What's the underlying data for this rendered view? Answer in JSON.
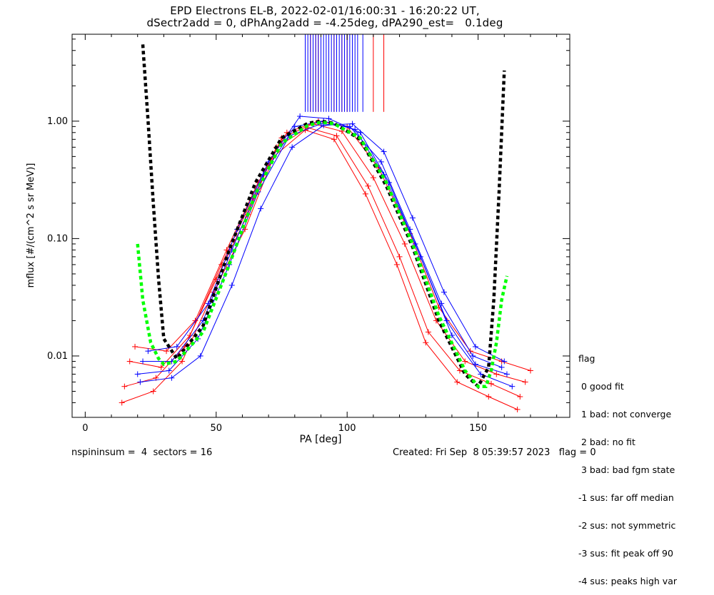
{
  "title_line1": "EPD Electrons EL-B, 2022-02-01/16:00:31 - 16:20:22 UT,",
  "title_line2": "dSectr2add = 0, dPhAng2add = -4.25deg, dPA290_est=   0.1deg",
  "footer": {
    "left": "nspininsum =  4  sectors = 16",
    "right": "Created: Fri Sep  8 05:39:57 2023   flag = 0"
  },
  "legend": {
    "title": "flag",
    "items": [
      " 0 good fit",
      " 1 bad: not converge",
      " 2 bad: no fit",
      " 3 bad: bad fgm state",
      "-1 sus: far off median",
      "-2 sus: not symmetric",
      "-3 sus: fit peak off 90",
      "-4 sus: peaks high var"
    ]
  },
  "colors": {
    "red_series": "#ff0000",
    "blue_series": "#0000ff",
    "fit_black": "#000000",
    "fit_green": "#00ff00",
    "axes": "#000000"
  },
  "chart_data": {
    "type": "line",
    "xlabel": "PA [deg]",
    "ylabel": "mflux [#/(cm^2 s sr MeV)]",
    "xlim": [
      -5,
      185
    ],
    "ylim": [
      0.003,
      5.5
    ],
    "yscale": "log",
    "xticks": [
      0,
      50,
      100,
      150
    ],
    "xtick_labels": [
      "0",
      "50",
      "100",
      "150"
    ],
    "yticks": [
      0.01,
      0.1,
      1.0
    ],
    "ytick_labels": [
      "0.01",
      "0.10",
      "1.00"
    ],
    "series": [
      {
        "color": "red",
        "style": "line+cross",
        "x": [
          17,
          29,
          40,
          52,
          64,
          75,
          87,
          98,
          110,
          122,
          134,
          145,
          157,
          168
        ],
        "y": [
          0.009,
          0.008,
          0.015,
          0.06,
          0.22,
          0.72,
          0.95,
          0.82,
          0.33,
          0.09,
          0.02,
          0.009,
          0.007,
          0.006
        ]
      },
      {
        "color": "red",
        "style": "line+cross",
        "x": [
          15,
          27,
          38,
          50,
          62,
          73,
          85,
          96,
          108,
          120,
          131,
          143,
          155,
          166
        ],
        "y": [
          0.0055,
          0.0065,
          0.012,
          0.045,
          0.16,
          0.6,
          0.88,
          0.75,
          0.28,
          0.07,
          0.016,
          0.0075,
          0.0058,
          0.0045
        ]
      },
      {
        "color": "red",
        "style": "line+cross",
        "x": [
          19,
          31,
          42,
          54,
          66,
          77,
          89,
          100,
          112,
          124,
          135,
          147,
          159,
          170
        ],
        "y": [
          0.012,
          0.011,
          0.02,
          0.08,
          0.3,
          0.8,
          1.0,
          0.9,
          0.4,
          0.11,
          0.026,
          0.011,
          0.009,
          0.0075
        ]
      },
      {
        "color": "red",
        "style": "line+cross",
        "x": [
          14,
          26,
          37,
          49,
          61,
          72,
          84,
          95,
          107,
          119,
          130,
          142,
          154,
          165
        ],
        "y": [
          0.004,
          0.005,
          0.009,
          0.035,
          0.12,
          0.5,
          0.84,
          0.7,
          0.24,
          0.06,
          0.013,
          0.006,
          0.0045,
          0.0035
        ]
      },
      {
        "color": "blue",
        "style": "line+cross",
        "x": [
          22,
          33,
          45,
          56,
          68,
          80,
          91,
          103,
          114,
          126,
          138,
          149,
          161
        ],
        "y": [
          0.009,
          0.009,
          0.02,
          0.08,
          0.35,
          0.9,
          1.0,
          0.85,
          0.35,
          0.09,
          0.02,
          0.0085,
          0.007
        ]
      },
      {
        "color": "blue",
        "style": "line+cross",
        "x": [
          20,
          32,
          43,
          55,
          66,
          78,
          90,
          101,
          113,
          124,
          136,
          148,
          159
        ],
        "y": [
          0.007,
          0.0075,
          0.014,
          0.06,
          0.25,
          0.75,
          0.95,
          0.9,
          0.45,
          0.12,
          0.028,
          0.01,
          0.008
        ]
      },
      {
        "color": "blue",
        "style": "line+cross",
        "x": [
          24,
          35,
          47,
          58,
          70,
          82,
          93,
          105,
          116,
          128,
          140,
          151,
          163
        ],
        "y": [
          0.011,
          0.012,
          0.028,
          0.12,
          0.45,
          1.1,
          1.05,
          0.8,
          0.3,
          0.07,
          0.015,
          0.007,
          0.0055
        ]
      },
      {
        "color": "blue",
        "style": "line+cross",
        "x": [
          21,
          33,
          44,
          56,
          67,
          79,
          91,
          102,
          114,
          125,
          137,
          149,
          160
        ],
        "y": [
          0.006,
          0.0065,
          0.01,
          0.04,
          0.18,
          0.6,
          0.92,
          0.95,
          0.55,
          0.15,
          0.035,
          0.012,
          0.009
        ]
      },
      {
        "color": "black",
        "style": "dashed-fit",
        "x": [
          22,
          24,
          26,
          28,
          30,
          35,
          45,
          55,
          65,
          75,
          85,
          90,
          95,
          105,
          115,
          125,
          135,
          145,
          150,
          154,
          156,
          158,
          160
        ],
        "y": [
          4.5,
          1.0,
          0.2,
          0.045,
          0.014,
          0.0095,
          0.018,
          0.08,
          0.3,
          0.72,
          0.96,
          1.0,
          0.96,
          0.7,
          0.28,
          0.085,
          0.02,
          0.007,
          0.0055,
          0.008,
          0.03,
          0.25,
          2.7
        ]
      },
      {
        "color": "green",
        "style": "dashed-fit",
        "x": [
          20,
          22,
          25,
          28,
          30,
          35,
          45,
          55,
          65,
          75,
          85,
          90,
          95,
          105,
          115,
          125,
          135,
          145,
          150,
          153,
          155,
          157,
          159,
          161
        ],
        "y": [
          0.09,
          0.03,
          0.013,
          0.0095,
          0.0085,
          0.009,
          0.016,
          0.06,
          0.24,
          0.65,
          0.92,
          0.98,
          0.95,
          0.72,
          0.3,
          0.09,
          0.022,
          0.0075,
          0.0055,
          0.0055,
          0.0075,
          0.013,
          0.03,
          0.048
        ]
      }
    ],
    "saturated_spikes": {
      "red_x": [
        86,
        87,
        88,
        89,
        95,
        98,
        100,
        110,
        114
      ],
      "blue_x": [
        84,
        85,
        86,
        87,
        88,
        89,
        90,
        91,
        92,
        93,
        94,
        95,
        96,
        97,
        98,
        99,
        100,
        101,
        102,
        103,
        104,
        106
      ]
    }
  }
}
